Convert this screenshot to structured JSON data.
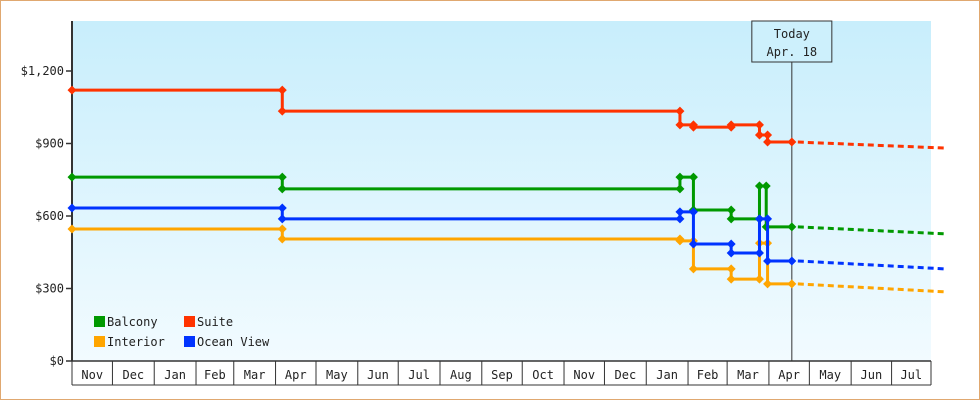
{
  "chart_data": {
    "type": "line",
    "title": "",
    "xlabel": "",
    "ylabel": "",
    "ylim": [
      0,
      1400
    ],
    "yticks": [
      0,
      300,
      600,
      900,
      1200
    ],
    "ytick_labels": [
      "$0",
      "$300",
      "$600",
      "$900",
      "$1,200"
    ],
    "xlim": [
      "2022-11-01",
      "2024-08-10"
    ],
    "xtick_labels": [
      "Nov",
      "Dec",
      "Jan",
      "Feb",
      "Mar",
      "Apr",
      "May",
      "Jun",
      "Jul",
      "Aug",
      "Sep",
      "Oct",
      "Nov",
      "Dec",
      "Jan",
      "Feb",
      "Mar",
      "Apr",
      "May",
      "Jun",
      "Jul"
    ],
    "xtick_months": [
      "2022-11",
      "2022-12",
      "2023-01",
      "2023-02",
      "2023-03",
      "2023-04",
      "2023-05",
      "2023-06",
      "2023-07",
      "2023-08",
      "2023-09",
      "2023-10",
      "2023-11",
      "2023-12",
      "2024-01",
      "2024-02",
      "2024-03",
      "2024-04",
      "2024-05",
      "2024-06",
      "2024-07"
    ],
    "grid": false,
    "legend_position": "bottom-left",
    "today": {
      "date": "2024-04-18",
      "label_line1": "Today",
      "label_line2": "Apr. 18"
    },
    "series": [
      {
        "name": "Balcony",
        "color": "#009900",
        "points": [
          [
            "2022-11-01",
            761
          ],
          [
            "2023-04-06",
            761
          ],
          [
            "2023-04-06",
            712
          ],
          [
            "2024-01-26",
            712
          ],
          [
            "2024-01-26",
            761
          ],
          [
            "2024-02-05",
            761
          ],
          [
            "2024-02-05",
            625
          ],
          [
            "2024-03-04",
            625
          ],
          [
            "2024-03-04",
            588
          ],
          [
            "2024-03-25",
            588
          ],
          [
            "2024-03-25",
            724
          ],
          [
            "2024-03-30",
            724
          ],
          [
            "2024-03-30",
            555
          ],
          [
            "2024-04-18",
            555
          ]
        ],
        "forecast": [
          [
            "2024-04-18",
            555
          ],
          [
            "2024-08-10",
            526
          ]
        ]
      },
      {
        "name": "Suite",
        "color": "#ff3300",
        "points": [
          [
            "2022-11-01",
            1121
          ],
          [
            "2023-04-06",
            1121
          ],
          [
            "2023-04-06",
            1034
          ],
          [
            "2024-01-26",
            1034
          ],
          [
            "2024-01-26",
            977
          ],
          [
            "2024-02-05",
            977
          ],
          [
            "2024-02-05",
            968
          ],
          [
            "2024-03-04",
            968
          ],
          [
            "2024-03-04",
            977
          ],
          [
            "2024-03-25",
            977
          ],
          [
            "2024-03-25",
            935
          ],
          [
            "2024-03-31",
            935
          ],
          [
            "2024-03-31",
            906
          ],
          [
            "2024-04-18",
            906
          ]
        ],
        "forecast": [
          [
            "2024-04-18",
            906
          ],
          [
            "2024-08-10",
            881
          ]
        ]
      },
      {
        "name": "Interior",
        "color": "#ffa500",
        "points": [
          [
            "2022-11-01",
            546
          ],
          [
            "2023-04-06",
            546
          ],
          [
            "2023-04-06",
            505
          ],
          [
            "2024-01-26",
            505
          ],
          [
            "2024-01-26",
            497
          ],
          [
            "2024-02-05",
            497
          ],
          [
            "2024-02-05",
            381
          ],
          [
            "2024-03-04",
            381
          ],
          [
            "2024-03-04",
            339
          ],
          [
            "2024-03-25",
            339
          ],
          [
            "2024-03-25",
            488
          ],
          [
            "2024-03-31",
            488
          ],
          [
            "2024-03-31",
            319
          ],
          [
            "2024-04-18",
            319
          ]
        ],
        "forecast": [
          [
            "2024-04-18",
            319
          ],
          [
            "2024-08-10",
            286
          ]
        ]
      },
      {
        "name": "Ocean View",
        "color": "#0033ff",
        "points": [
          [
            "2022-11-01",
            633
          ],
          [
            "2023-04-06",
            633
          ],
          [
            "2023-04-06",
            588
          ],
          [
            "2024-01-26",
            588
          ],
          [
            "2024-01-26",
            617
          ],
          [
            "2024-02-05",
            617
          ],
          [
            "2024-02-05",
            484
          ],
          [
            "2024-03-04",
            484
          ],
          [
            "2024-03-04",
            447
          ],
          [
            "2024-03-25",
            447
          ],
          [
            "2024-03-25",
            588
          ],
          [
            "2024-03-31",
            588
          ],
          [
            "2024-03-31",
            414
          ],
          [
            "2024-04-18",
            414
          ]
        ],
        "forecast": [
          [
            "2024-04-18",
            414
          ],
          [
            "2024-08-10",
            381
          ]
        ]
      }
    ]
  }
}
